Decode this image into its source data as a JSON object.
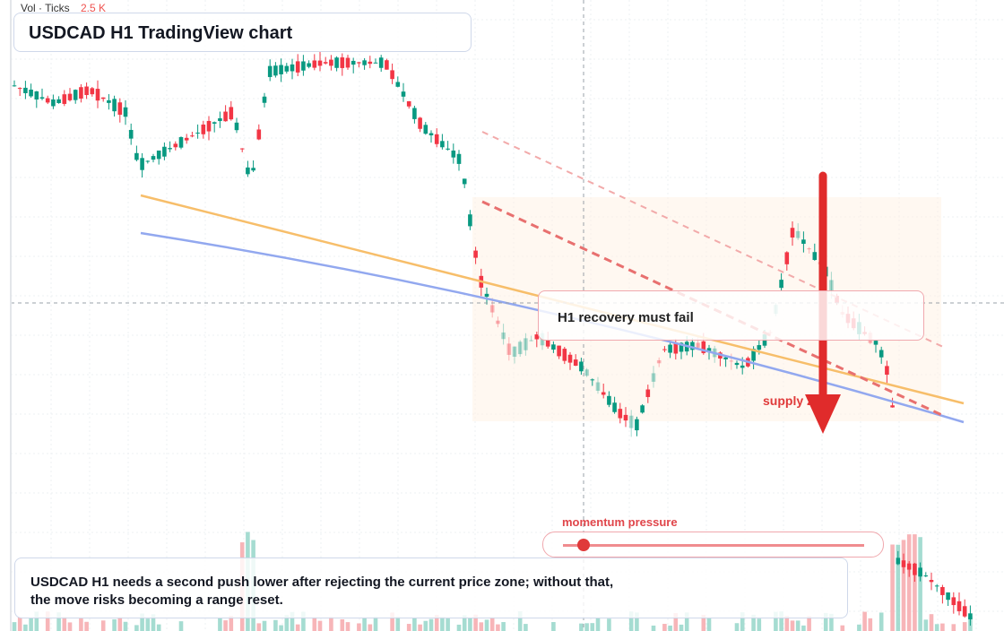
{
  "header": {
    "vol_label": "Vol · Ticks",
    "vol_value": "2.5 K",
    "title": "USDCAD H1 TradingView chart"
  },
  "annotations": {
    "callout": "H1 recovery must fail",
    "zone_label": "supply zone",
    "momentum_label": "momentum pressure"
  },
  "summary": {
    "lines": [
      "USDCAD H1 needs a second push lower after rejecting the current price zone; without that,",
      "the move risks becoming a range reset."
    ]
  }
}
